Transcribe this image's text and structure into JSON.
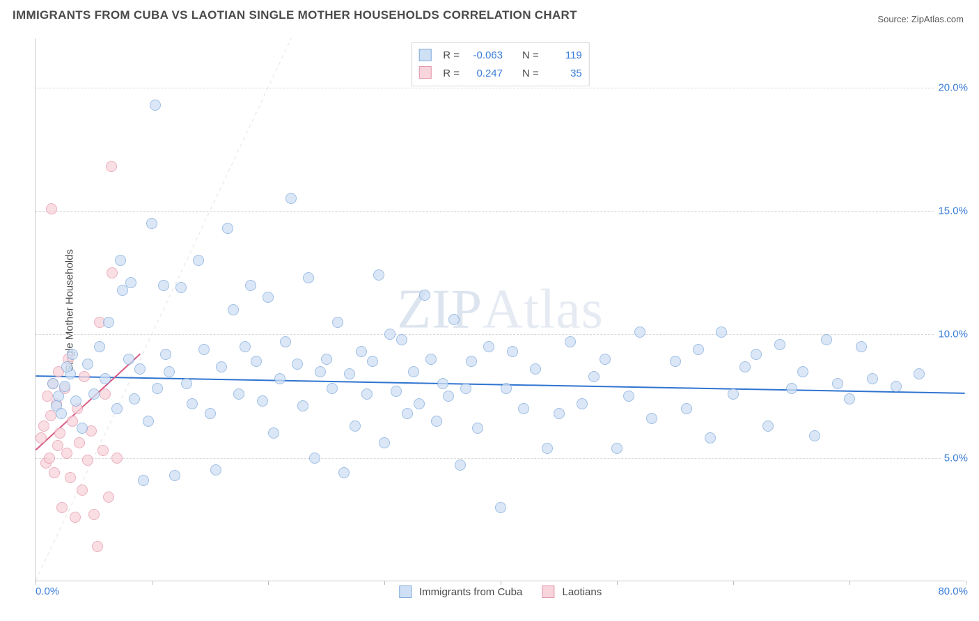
{
  "title": "IMMIGRANTS FROM CUBA VS LAOTIAN SINGLE MOTHER HOUSEHOLDS CORRELATION CHART",
  "source_label": "Source:",
  "source_name": "ZipAtlas.com",
  "ylabel": "Single Mother Households",
  "watermark_a": "ZIP",
  "watermark_b": "Atlas",
  "chart": {
    "type": "scatter",
    "xlim": [
      0,
      80
    ],
    "ylim": [
      0,
      22
    ],
    "x_ticks": [
      0,
      10,
      20,
      30,
      40,
      50,
      60,
      70,
      80
    ],
    "y_gridlines": [
      5,
      10,
      15,
      20
    ],
    "y_labels_right": [
      "5.0%",
      "10.0%",
      "15.0%",
      "20.0%"
    ],
    "x_label_min": "0.0%",
    "x_label_max": "80.0%",
    "background_color": "#ffffff",
    "grid_color": "#d9d9d9",
    "axis_color": "#cccccc",
    "diagonal_ref_line": {
      "color": "#e4e4e4",
      "dash": true
    },
    "marker_radius": 8,
    "marker_stroke_width": 1.3,
    "series": [
      {
        "name": "Immigrants from Cuba",
        "fill": "#cfe0f5",
        "stroke": "#7fa9dc",
        "fill_opacity": 0.75,
        "R": "-0.063",
        "N": "119",
        "regression": {
          "x1": 0,
          "y1": 8.3,
          "x2": 80,
          "y2": 7.6,
          "color": "#2f74d0",
          "width": 2
        },
        "points": [
          [
            2,
            7.5
          ],
          [
            2.5,
            7.9
          ],
          [
            3,
            8.4
          ],
          [
            1.8,
            7.1
          ],
          [
            2.2,
            6.8
          ],
          [
            1.5,
            8.0
          ],
          [
            3.2,
            9.2
          ],
          [
            2.7,
            8.7
          ],
          [
            3.5,
            7.3
          ],
          [
            4,
            6.2
          ],
          [
            4.5,
            8.8
          ],
          [
            5,
            7.6
          ],
          [
            5.5,
            9.5
          ],
          [
            6,
            8.2
          ],
          [
            6.3,
            10.5
          ],
          [
            7,
            7.0
          ],
          [
            7.3,
            13.0
          ],
          [
            7.5,
            11.8
          ],
          [
            8,
            9.0
          ],
          [
            8.2,
            12.1
          ],
          [
            8.5,
            7.4
          ],
          [
            9,
            8.6
          ],
          [
            9.3,
            4.1
          ],
          [
            9.7,
            6.5
          ],
          [
            10,
            14.5
          ],
          [
            10.3,
            19.3
          ],
          [
            10.5,
            7.8
          ],
          [
            11,
            12.0
          ],
          [
            11.2,
            9.2
          ],
          [
            11.5,
            8.5
          ],
          [
            12,
            4.3
          ],
          [
            12.5,
            11.9
          ],
          [
            13,
            8.0
          ],
          [
            13.5,
            7.2
          ],
          [
            14,
            13.0
          ],
          [
            14.5,
            9.4
          ],
          [
            15,
            6.8
          ],
          [
            15.5,
            4.5
          ],
          [
            16,
            8.7
          ],
          [
            16.5,
            14.3
          ],
          [
            17,
            11.0
          ],
          [
            17.5,
            7.6
          ],
          [
            18,
            9.5
          ],
          [
            18.5,
            12.0
          ],
          [
            19,
            8.9
          ],
          [
            19.5,
            7.3
          ],
          [
            20,
            11.5
          ],
          [
            20.5,
            6.0
          ],
          [
            21,
            8.2
          ],
          [
            21.5,
            9.7
          ],
          [
            22,
            15.5
          ],
          [
            22.5,
            8.8
          ],
          [
            23,
            7.1
          ],
          [
            23.5,
            12.3
          ],
          [
            24,
            5.0
          ],
          [
            24.5,
            8.5
          ],
          [
            25,
            9.0
          ],
          [
            25.5,
            7.8
          ],
          [
            26,
            10.5
          ],
          [
            26.5,
            4.4
          ],
          [
            27,
            8.4
          ],
          [
            27.5,
            6.3
          ],
          [
            28,
            9.3
          ],
          [
            28.5,
            7.6
          ],
          [
            29,
            8.9
          ],
          [
            29.5,
            12.4
          ],
          [
            30,
            5.6
          ],
          [
            30.5,
            10.0
          ],
          [
            31,
            7.7
          ],
          [
            31.5,
            9.8
          ],
          [
            32,
            6.8
          ],
          [
            32.5,
            8.5
          ],
          [
            33,
            7.2
          ],
          [
            33.5,
            11.6
          ],
          [
            34,
            9.0
          ],
          [
            34.5,
            6.5
          ],
          [
            35,
            8.0
          ],
          [
            35.5,
            7.5
          ],
          [
            36,
            10.6
          ],
          [
            36.5,
            4.7
          ],
          [
            37,
            7.8
          ],
          [
            37.5,
            8.9
          ],
          [
            38,
            6.2
          ],
          [
            39,
            9.5
          ],
          [
            40,
            3.0
          ],
          [
            40.5,
            7.8
          ],
          [
            41,
            9.3
          ],
          [
            42,
            7.0
          ],
          [
            43,
            8.6
          ],
          [
            44,
            5.4
          ],
          [
            45,
            6.8
          ],
          [
            46,
            9.7
          ],
          [
            47,
            7.2
          ],
          [
            48,
            8.3
          ],
          [
            49,
            9.0
          ],
          [
            50,
            5.4
          ],
          [
            51,
            7.5
          ],
          [
            52,
            10.1
          ],
          [
            53,
            6.6
          ],
          [
            55,
            8.9
          ],
          [
            56,
            7.0
          ],
          [
            57,
            9.4
          ],
          [
            58,
            5.8
          ],
          [
            59,
            10.1
          ],
          [
            60,
            7.6
          ],
          [
            61,
            8.7
          ],
          [
            62,
            9.2
          ],
          [
            63,
            6.3
          ],
          [
            64,
            9.6
          ],
          [
            65,
            7.8
          ],
          [
            66,
            8.5
          ],
          [
            67,
            5.9
          ],
          [
            68,
            9.8
          ],
          [
            69,
            8.0
          ],
          [
            70,
            7.4
          ],
          [
            71,
            9.5
          ],
          [
            72,
            8.2
          ],
          [
            74,
            7.9
          ],
          [
            76,
            8.4
          ]
        ]
      },
      {
        "name": "Laotians",
        "fill": "#f8d4dc",
        "stroke": "#e397ab",
        "fill_opacity": 0.75,
        "R": "0.247",
        "N": "35",
        "regression": {
          "x1": 0,
          "y1": 5.3,
          "x2": 9,
          "y2": 9.2,
          "color": "#d85a82",
          "width": 2
        },
        "points": [
          [
            0.5,
            5.8
          ],
          [
            0.7,
            6.3
          ],
          [
            0.9,
            4.8
          ],
          [
            1.0,
            7.5
          ],
          [
            1.2,
            5.0
          ],
          [
            1.3,
            6.7
          ],
          [
            1.5,
            8.0
          ],
          [
            1.6,
            4.4
          ],
          [
            1.8,
            7.2
          ],
          [
            1.9,
            5.5
          ],
          [
            2.0,
            8.5
          ],
          [
            2.1,
            6.0
          ],
          [
            2.3,
            3.0
          ],
          [
            2.5,
            7.8
          ],
          [
            2.7,
            5.2
          ],
          [
            2.8,
            9.0
          ],
          [
            3.0,
            4.2
          ],
          [
            3.2,
            6.5
          ],
          [
            3.4,
            2.6
          ],
          [
            3.6,
            7.0
          ],
          [
            3.8,
            5.6
          ],
          [
            4.0,
            3.7
          ],
          [
            4.2,
            8.3
          ],
          [
            4.5,
            4.9
          ],
          [
            4.8,
            6.1
          ],
          [
            5.0,
            2.7
          ],
          [
            5.3,
            1.4
          ],
          [
            5.5,
            10.5
          ],
          [
            5.8,
            5.3
          ],
          [
            6.0,
            7.6
          ],
          [
            6.3,
            3.4
          ],
          [
            6.6,
            12.5
          ],
          [
            7.0,
            5.0
          ],
          [
            1.4,
            15.1
          ],
          [
            6.5,
            16.8
          ]
        ]
      }
    ]
  },
  "legend_top": {
    "R_label": "R =",
    "N_label": "N ="
  },
  "legend_bottom": [
    {
      "label": "Immigrants from Cuba",
      "fill": "#cfe0f5",
      "stroke": "#7fa9dc"
    },
    {
      "label": "Laotians",
      "fill": "#f8d4dc",
      "stroke": "#e397ab"
    }
  ]
}
